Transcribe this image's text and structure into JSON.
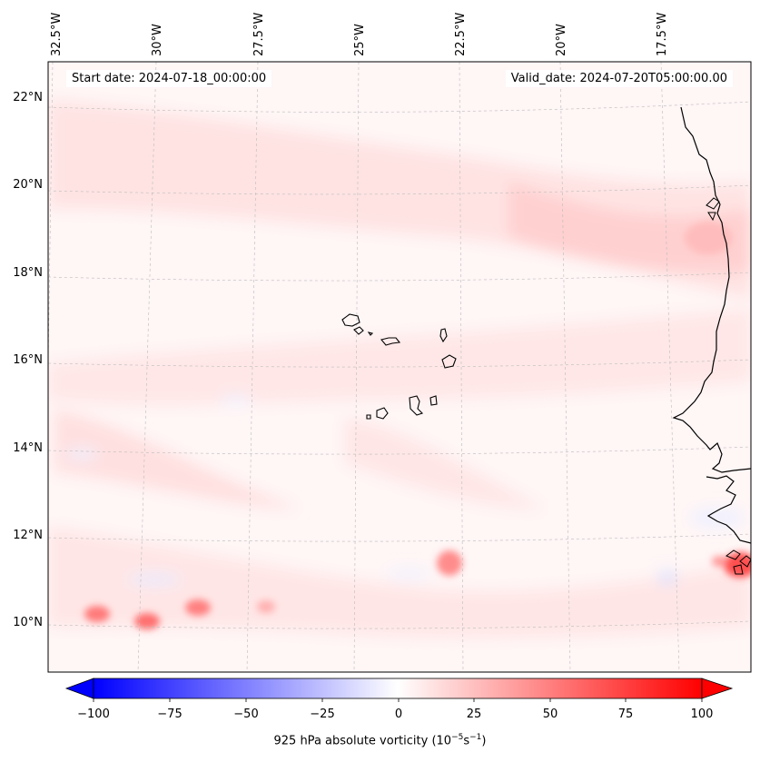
{
  "map": {
    "projection": "lambert-conformal-like",
    "lon_ticks": [
      "32.5°W",
      "30°W",
      "27.5°W",
      "25°W",
      "22.5°W",
      "20°W",
      "17.5°W"
    ],
    "lat_ticks": [
      "22°N",
      "20°N",
      "18°N",
      "16°N",
      "14°N",
      "12°N",
      "10°N"
    ],
    "start_date": "Start date: 2024-07-18_00:00:00",
    "valid_date": "Valid_date: 2024-07-20T05:00:00.00",
    "features": [
      "coastline-west-africa",
      "cape-verde-islands",
      "gridlines"
    ]
  },
  "colorbar": {
    "title_prefix": "925 hPa absolute vorticity (10",
    "title_exp1": "−5",
    "title_mid": "s",
    "title_exp2": "−1",
    "title_suffix": ")",
    "ticks": [
      "−100",
      "−75",
      "−50",
      "−25",
      "0",
      "25",
      "50",
      "75",
      "100"
    ],
    "colormap": "bwr",
    "range": [
      -100,
      100
    ],
    "extend": "both"
  },
  "colors": {
    "positive": "#ff0000",
    "negative": "#0000ff",
    "zero": "#ffffff"
  }
}
